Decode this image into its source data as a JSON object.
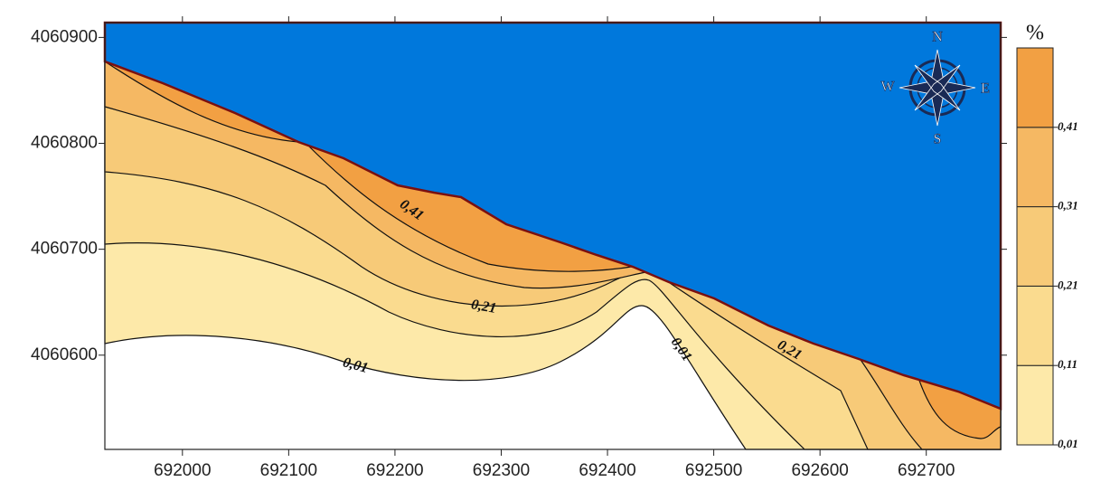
{
  "chart_data": {
    "type": "contour",
    "xlim": [
      691927,
      692770
    ],
    "ylim": [
      4060511,
      4060914
    ],
    "xticks": [
      692000,
      692100,
      692200,
      692300,
      692400,
      692500,
      692600,
      692700
    ],
    "yticks": [
      4060600,
      4060700,
      4060800,
      4060900
    ],
    "water_color": "#0078dc",
    "colorbar": {
      "title": "%",
      "lim": [
        0.01,
        0.51
      ],
      "ticks": [
        {
          "value": 0.01,
          "label": "0,01"
        },
        {
          "value": 0.11,
          "label": "0,11"
        },
        {
          "value": 0.21,
          "label": "0,21"
        },
        {
          "value": 0.31,
          "label": "0,31"
        },
        {
          "value": 0.41,
          "label": "0,41"
        }
      ],
      "colors": [
        "#fde9a9",
        "#fadb8f",
        "#f7ca78",
        "#f5b863",
        "#f2a043"
      ]
    },
    "contour_labels": [
      "0,41",
      "0,21",
      "0,01",
      "0,01",
      "0,21"
    ],
    "compass": [
      "N",
      "E",
      "S",
      "W"
    ]
  }
}
